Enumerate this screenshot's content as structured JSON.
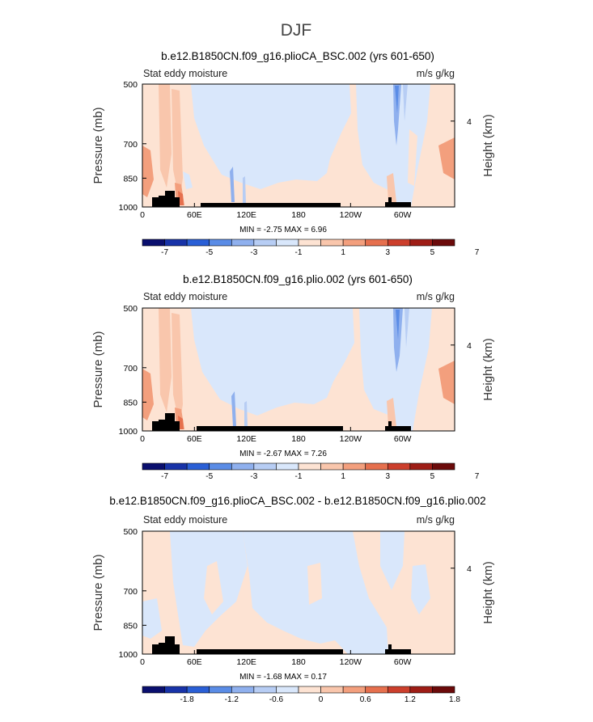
{
  "figure_title": "DJF",
  "colors": {
    "ref_scale": [
      "#0a0f6e",
      "#1833a8",
      "#2a5fd6",
      "#5a8ce6",
      "#8fb0ee",
      "#b7cdf4",
      "#d9e7fb",
      "#fde3d3",
      "#f9c6ac",
      "#f39f7d",
      "#e6704e",
      "#cc3f2c",
      "#9e1d16",
      "#6b0a0a"
    ],
    "diff_scale": [
      "#0a0f6e",
      "#1833a8",
      "#2a5fd6",
      "#5a8ce6",
      "#8fb0ee",
      "#b7cdf4",
      "#d9e7fb",
      "#fde3d3",
      "#f9c6ac",
      "#f39f7d",
      "#e6704e",
      "#cc3f2c",
      "#9e1d16",
      "#6b0a0a"
    ],
    "topography": "#000000"
  },
  "chart_data": [
    {
      "type": "heatmap",
      "title": "b.e12.B1850CN.f09_g16.plioCA_BSC.002 (yrs 601-650)",
      "left_label": "Stat eddy moisture",
      "right_label": "m/s g/kg",
      "ylabel": "Pressure (mb)",
      "ylabel_right": "Height (km)",
      "x_ticks": [
        "0",
        "60E",
        "120E",
        "180",
        "120W",
        "60W"
      ],
      "y_ticks": [
        "500",
        "700",
        "850",
        "1000"
      ],
      "y_ticks_right": [
        "4"
      ],
      "min_max_label": "MIN = -2.75 MAX = 6.96",
      "min": -2.75,
      "max": 6.96,
      "colorbar_labels": [
        "-7",
        "-5",
        "-3",
        "-1",
        "1",
        "3",
        "5",
        "7"
      ]
    },
    {
      "type": "heatmap",
      "title": "b.e12.B1850CN.f09_g16.plio.002 (yrs 601-650)",
      "left_label": "Stat eddy moisture",
      "right_label": "m/s g/kg",
      "ylabel": "Pressure (mb)",
      "ylabel_right": "Height (km)",
      "x_ticks": [
        "0",
        "60E",
        "120E",
        "180",
        "120W",
        "60W"
      ],
      "y_ticks": [
        "500",
        "700",
        "850",
        "1000"
      ],
      "y_ticks_right": [
        "4"
      ],
      "min_max_label": "MIN = -2.67 MAX = 7.26",
      "min": -2.67,
      "max": 7.26,
      "colorbar_labels": [
        "-7",
        "-5",
        "-3",
        "-1",
        "1",
        "3",
        "5",
        "7"
      ]
    },
    {
      "type": "heatmap",
      "title": "b.e12.B1850CN.f09_g16.plioCA_BSC.002 - b.e12.B1850CN.f09_g16.plio.002",
      "left_label": "Stat eddy moisture",
      "right_label": "m/s g/kg",
      "ylabel": "Pressure (mb)",
      "ylabel_right": "Height (km)",
      "x_ticks": [
        "0",
        "60E",
        "120E",
        "180",
        "120W",
        "60W"
      ],
      "y_ticks": [
        "500",
        "700",
        "850",
        "1000"
      ],
      "y_ticks_right": [
        "4"
      ],
      "min_max_label": "MIN = -1.68 MAX = 0.17",
      "min": -1.68,
      "max": 0.17,
      "colorbar_labels": [
        "-1.8",
        "-1.2",
        "-0.6",
        "0",
        "0.6",
        "1.2",
        "1.8"
      ]
    }
  ]
}
